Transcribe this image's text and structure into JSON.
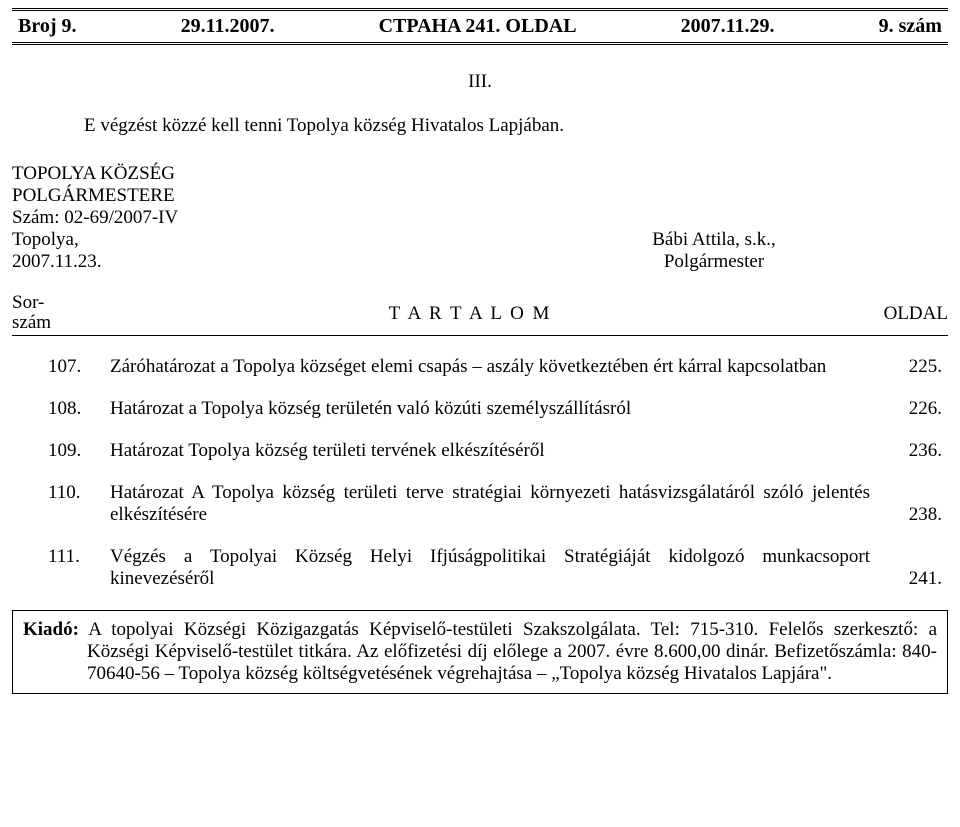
{
  "colors": {
    "background": "#ffffff",
    "text": "#000000",
    "border": "#000000"
  },
  "typography": {
    "font_family": "Times New Roman",
    "base_size_pt": 14,
    "header_size_pt": 15,
    "header_weight": "bold"
  },
  "header": {
    "left": "Broj 9.",
    "date_left": "29.11.2007.",
    "center": "CTPAHA 241. OLDAL",
    "date_right": "2007.11.29.",
    "right": "9. szám"
  },
  "section_number": "III.",
  "intro_line": "E végzést közzé kell tenni Topolya község Hivatalos Lapjában.",
  "signer": {
    "org1": "TOPOLYA KÖZSÉG",
    "org2": "POLGÁRMESTERE",
    "ref": "Szám: 02-69/2007-IV",
    "place": "Topolya,",
    "date": "2007.11.23.",
    "name": "Bábi Attila, s.k.,",
    "title": "Polgármester"
  },
  "toc_header": {
    "sor_line1": "Sor-",
    "sor_line2": "szám",
    "center": "T A R T A L O M",
    "right": "OLDAL"
  },
  "toc": [
    {
      "num": "107.",
      "text": "Záróhatározat a Topolya községet elemi csapás – aszály következtében ért kárral kapcsolatban",
      "page": "225."
    },
    {
      "num": "108.",
      "text": "Határozat a Topolya község területén való közúti személyszállításról",
      "page": "226."
    },
    {
      "num": "109.",
      "text": "Határozat Topolya község területi tervének elkészítéséről",
      "page": "236."
    },
    {
      "num": "110.",
      "text": "Határozat A Topolya község területi terve stratégiai környezeti hatásvizsgálatáról szóló jelentés elkészítésére",
      "page": "238."
    },
    {
      "num": "111.",
      "text": "Végzés a Topolyai Község Helyi Ifjúságpolitikai Stratégiáját kidolgozó munkacsoport kinevezéséről",
      "page": "241."
    }
  ],
  "footer": {
    "lead": "Kiadó:",
    "body": " A topolyai Községi Közigazgatás Képviselő-testületi Szakszolgálata. Tel: 715-310. Felelős szerkesztő: a Községi Képviselő-testület titkára. Az előfizetési díj előlege a 2007. évre 8.600,00 dinár. Befizetőszámla: 840-70640-56 – Topolya község költségvetésének végrehajtása – „Topolya község Hivatalos Lapjára\"."
  }
}
